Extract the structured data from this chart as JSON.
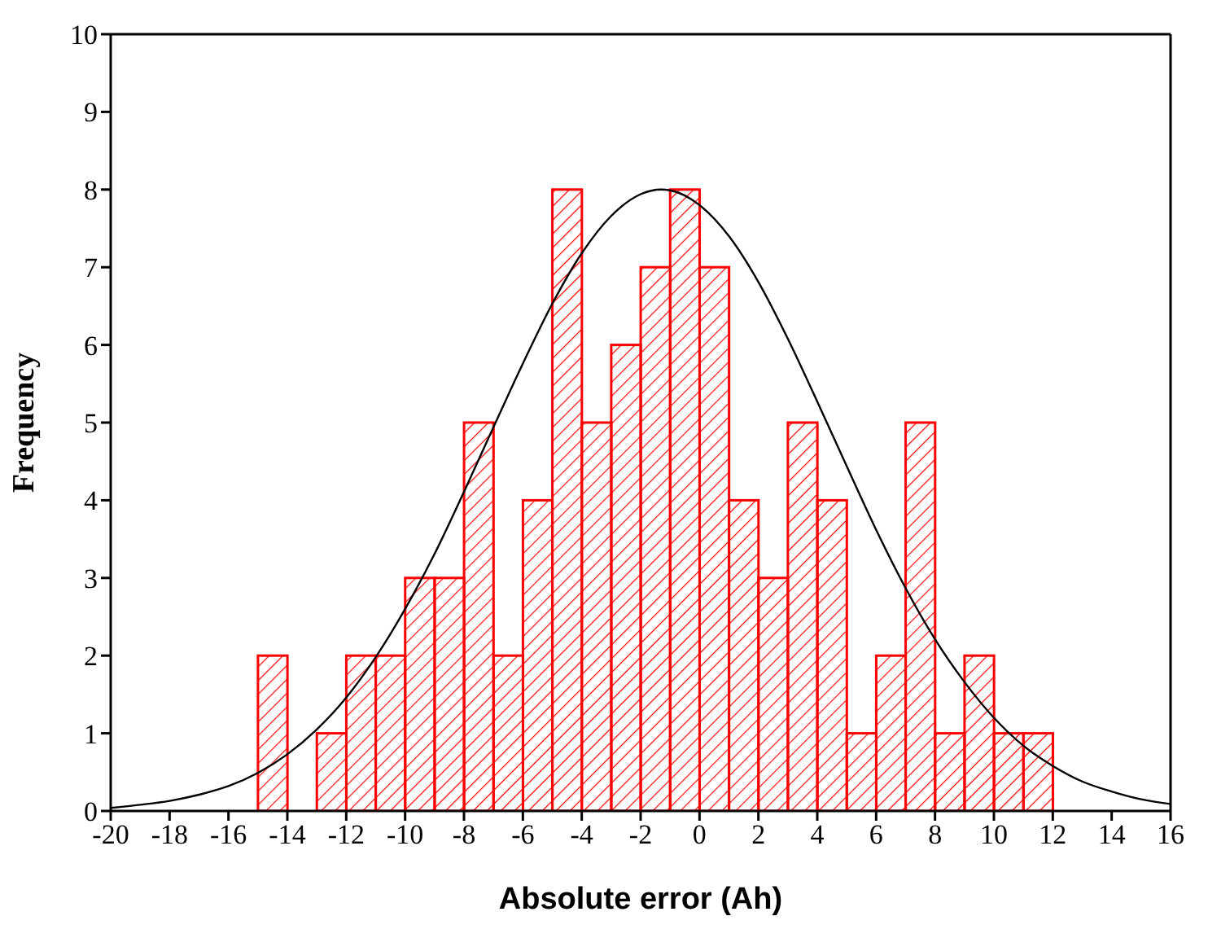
{
  "chart_data": {
    "type": "histogram",
    "xlabel": "Absolute error (Ah)",
    "ylabel": "Frequency",
    "bins": [
      -15,
      -14,
      -13,
      -12,
      -11,
      -10,
      -9,
      -8,
      -7,
      -6,
      -5,
      -4,
      -3,
      -2,
      -1,
      0,
      1,
      2,
      3,
      4,
      5,
      6,
      7,
      8,
      9,
      10,
      11,
      12
    ],
    "values": [
      2,
      0,
      1,
      2,
      2,
      3,
      3,
      5,
      2,
      4,
      8,
      5,
      6,
      7,
      8,
      7,
      4,
      3,
      5,
      4,
      1,
      2,
      5,
      1,
      2,
      1,
      1
    ],
    "color": "#ff0000",
    "series": [
      {
        "type": "line",
        "color": "#000000",
        "x": [
          -20,
          -19,
          -18,
          -17,
          -16,
          -15,
          -14,
          -13,
          -12,
          -11,
          -10,
          -9,
          -8,
          -7,
          -6,
          -5,
          -4,
          -3,
          -2,
          -1.3,
          -1,
          0,
          1,
          2,
          3,
          4,
          5,
          6,
          7,
          8,
          9,
          10,
          11,
          12,
          13,
          14,
          15,
          16
        ],
        "values": [
          0.04,
          0.08,
          0.13,
          0.21,
          0.32,
          0.49,
          0.73,
          1.05,
          1.46,
          1.98,
          2.6,
          3.31,
          4.11,
          4.94,
          5.76,
          6.53,
          7.18,
          7.66,
          7.94,
          8,
          7.99,
          7.8,
          7.4,
          6.81,
          6.08,
          5.27,
          4.44,
          3.62,
          2.87,
          2.21,
          1.66,
          1.2,
          0.84,
          0.58,
          0.38,
          0.25,
          0.15,
          0.09
        ]
      }
    ],
    "xlim": [
      -20,
      16
    ],
    "xticks": [
      -20,
      -18,
      -16,
      -14,
      -12,
      -10,
      -8,
      -6,
      -4,
      -2,
      0,
      2,
      4,
      6,
      8,
      10,
      12,
      14,
      16
    ],
    "ylim": [
      0,
      10
    ],
    "yticks": [
      0,
      1,
      2,
      3,
      4,
      5,
      6,
      7,
      8,
      9,
      10
    ],
    "marker": "none",
    "grid": false,
    "legend": false
  }
}
